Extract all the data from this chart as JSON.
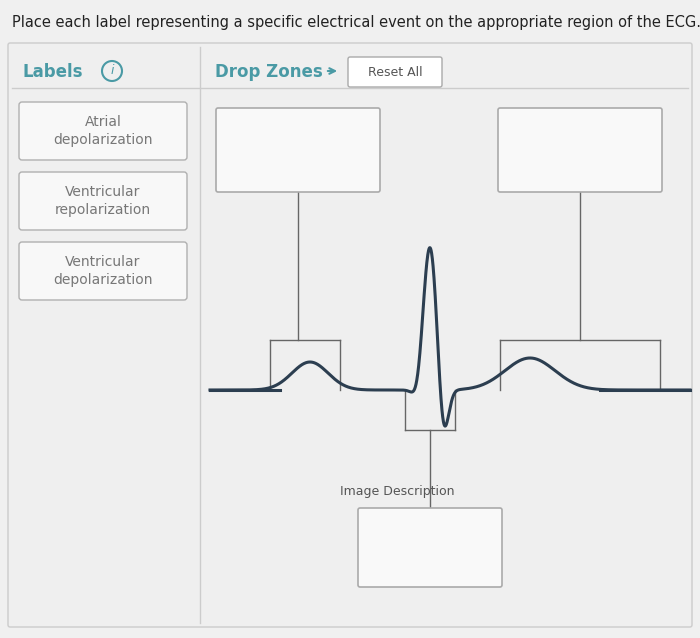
{
  "title": "Place each label representing a specific electrical event on the appropriate region of the ECG.",
  "title_fontsize": 10.5,
  "background_color": "#f0f0f0",
  "panel_color": "#efefef",
  "box_facecolor": "#f8f8f8",
  "box_edgecolor": "#b0b0b0",
  "teal_color": "#4a9aa5",
  "labels_title": "Labels",
  "drop_zones_title": "Drop Zones",
  "reset_all": "Reset All",
  "image_description": "Image Description",
  "label_items": [
    "Atrial\ndepolarization",
    "Ventricular\nrepolarization",
    "Ventricular\ndepolarization"
  ],
  "ecg_color": "#2c3e50",
  "connector_color": "#666666",
  "dropbox_facecolor": "#f9f9f9",
  "dropbox_edgecolor": "#aaaaaa"
}
